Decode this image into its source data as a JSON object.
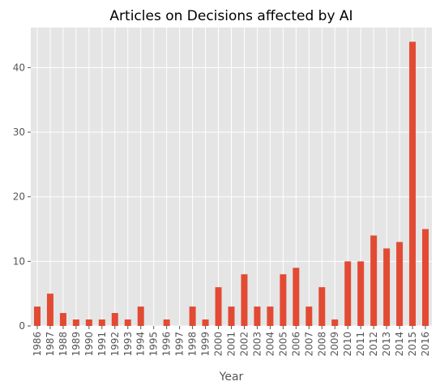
{
  "chart_data": {
    "type": "bar",
    "title": "Articles on Decisions affected by AI",
    "xlabel": "Year",
    "ylabel": "",
    "categories": [
      "1986",
      "1987",
      "1988",
      "1989",
      "1990",
      "1991",
      "1992",
      "1993",
      "1994",
      "1995",
      "1996",
      "1997",
      "1998",
      "1999",
      "2000",
      "2001",
      "2002",
      "2003",
      "2004",
      "2005",
      "2006",
      "2007",
      "2008",
      "2009",
      "2010",
      "2011",
      "2012",
      "2013",
      "2014",
      "2015",
      "2016"
    ],
    "values": [
      3,
      5,
      2,
      1,
      1,
      1,
      2,
      1,
      3,
      0,
      1,
      0,
      3,
      1,
      6,
      3,
      8,
      3,
      3,
      8,
      9,
      3,
      6,
      1,
      10,
      10,
      14,
      12,
      13,
      44,
      15
    ],
    "ylim": [
      0,
      46.2
    ],
    "yticks": [
      0,
      10,
      20,
      30,
      40
    ],
    "grid": true,
    "legend": "none",
    "colors": {
      "bar": "#E24A33",
      "background": "#E5E5E5",
      "grid": "#FFFFFF"
    }
  }
}
